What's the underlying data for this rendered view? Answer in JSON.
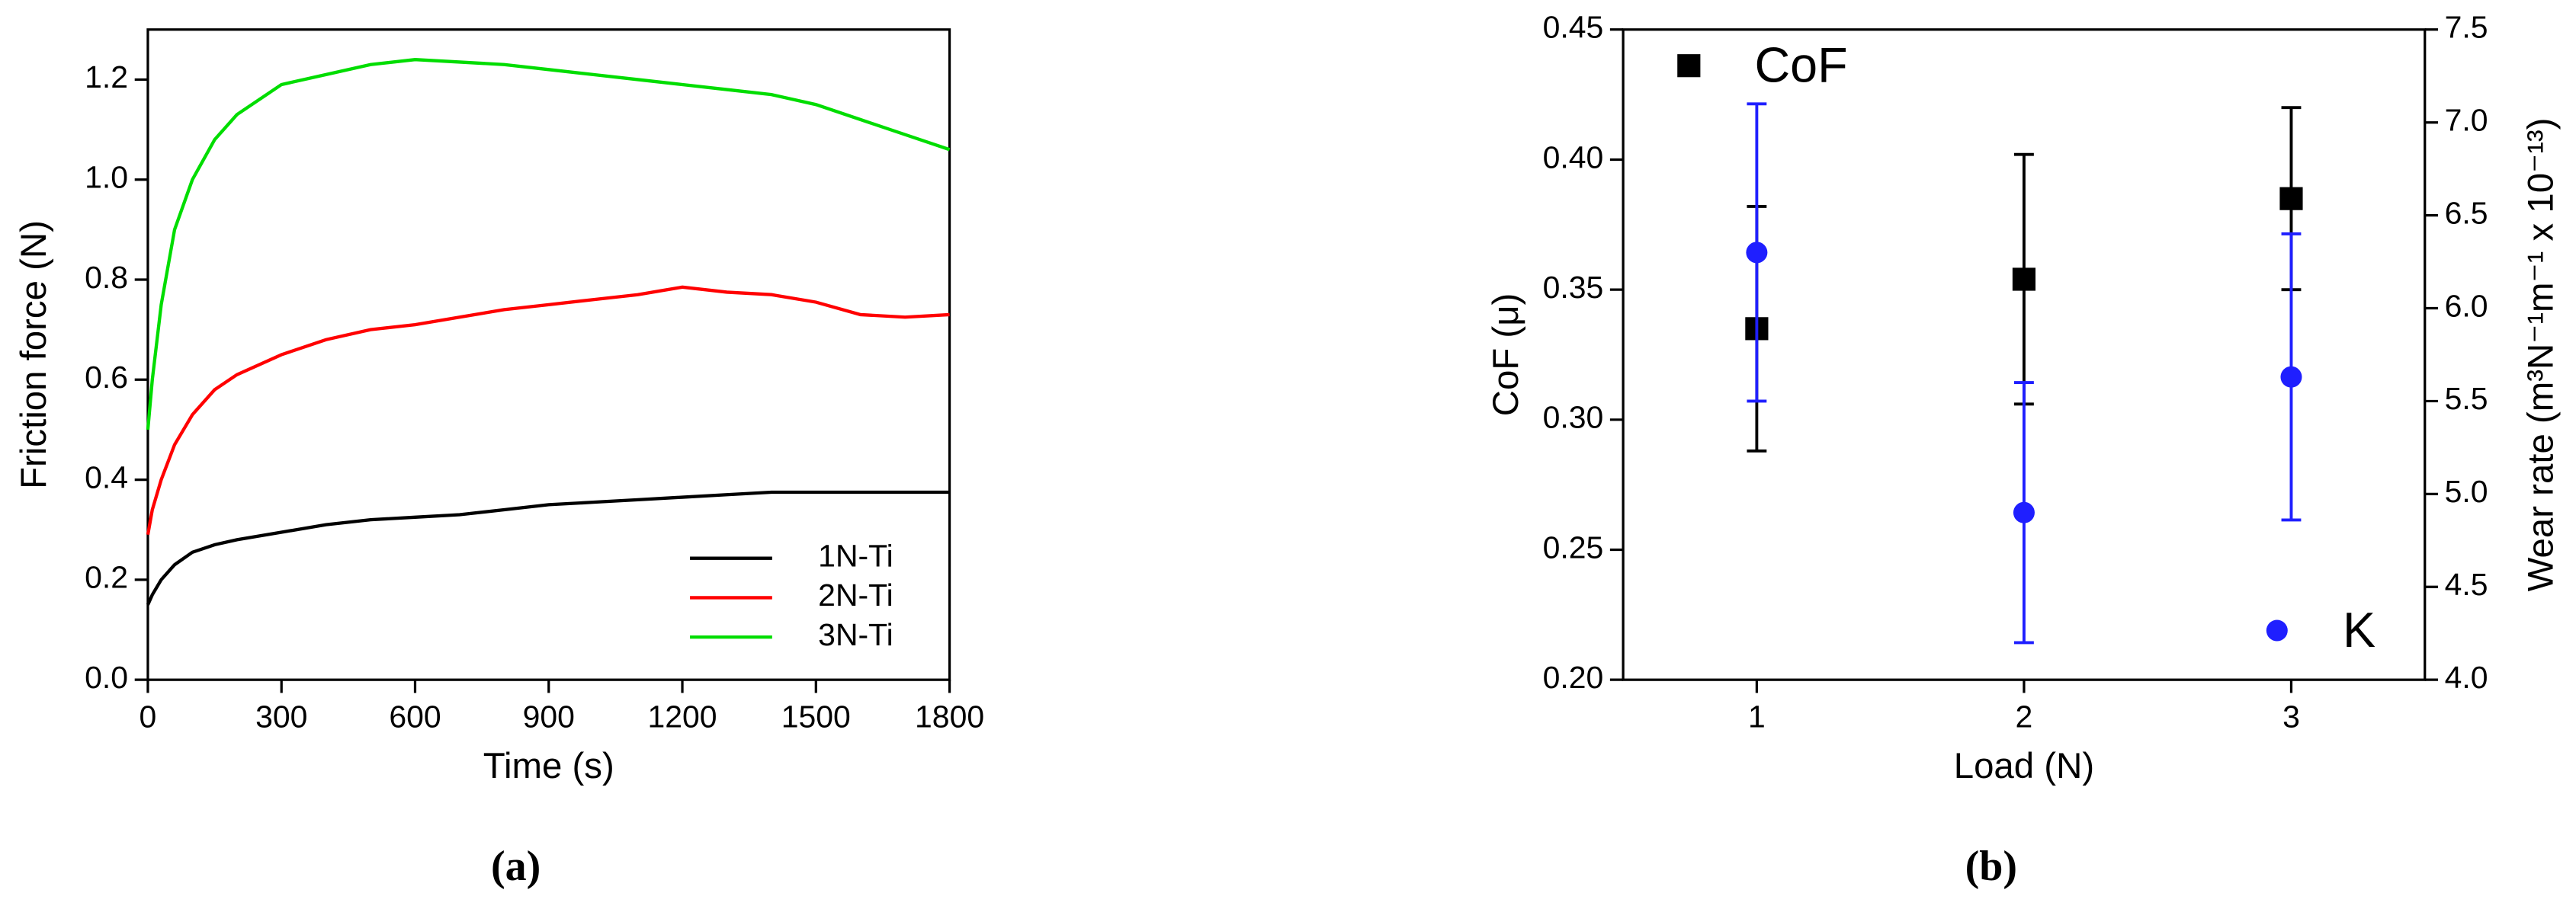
{
  "chart_data": [
    {
      "type": "line",
      "caption": "(a)",
      "xlabel": "Time (s)",
      "ylabel": "Friction force (N)",
      "x": [
        0,
        10,
        30,
        60,
        100,
        150,
        200,
        300,
        400,
        500,
        600,
        700,
        800,
        900,
        1000,
        1100,
        1200,
        1300,
        1400,
        1500,
        1600,
        1700,
        1800
      ],
      "series": [
        {
          "name": "1N-Ti",
          "color": "#000000",
          "values": [
            0.15,
            0.17,
            0.2,
            0.23,
            0.255,
            0.27,
            0.28,
            0.295,
            0.31,
            0.32,
            0.325,
            0.33,
            0.34,
            0.35,
            0.355,
            0.36,
            0.365,
            0.37,
            0.375,
            0.375,
            0.375,
            0.375,
            0.375
          ]
        },
        {
          "name": "2N-Ti",
          "color": "#ff0000",
          "values": [
            0.29,
            0.34,
            0.4,
            0.47,
            0.53,
            0.58,
            0.61,
            0.65,
            0.68,
            0.7,
            0.71,
            0.725,
            0.74,
            0.75,
            0.76,
            0.77,
            0.785,
            0.775,
            0.77,
            0.755,
            0.73,
            0.725,
            0.73
          ]
        },
        {
          "name": "3N-Ti",
          "color": "#00dd00",
          "values": [
            0.5,
            0.6,
            0.75,
            0.9,
            1.0,
            1.08,
            1.13,
            1.19,
            1.21,
            1.23,
            1.24,
            1.235,
            1.23,
            1.22,
            1.21,
            1.2,
            1.19,
            1.18,
            1.17,
            1.15,
            1.12,
            1.09,
            1.06
          ]
        }
      ],
      "xlim": [
        0,
        1800
      ],
      "xticks": [
        0,
        300,
        600,
        900,
        1200,
        1500,
        1800
      ],
      "ylim": [
        0,
        1.3
      ],
      "yticks": [
        {
          "value": 0,
          "label": "0.0"
        },
        0.2,
        0.4,
        0.6,
        0.8,
        {
          "value": 1,
          "label": "1.0"
        },
        1.2
      ],
      "legend": "lower right"
    },
    {
      "type": "scatter",
      "caption": "(b)",
      "xlabel": "Load (N)",
      "ylabel": "CoF (μ)",
      "y2label": "Wear rate (m³N⁻¹m⁻¹ x 10⁻¹³)",
      "x": [
        1,
        2,
        3
      ],
      "series": [
        {
          "name": "CoF",
          "color": "#000000",
          "marker": "square",
          "legend": "upper left",
          "values": [
            0.335,
            0.354,
            0.385
          ],
          "errors": [
            0.047,
            0.048,
            0.035
          ]
        },
        {
          "name": "K",
          "color": "#1f1fff",
          "marker": "circle",
          "axis": "y2",
          "legend": "lower right",
          "values": [
            6.3,
            4.9,
            5.63
          ],
          "errors": [
            0.8,
            0.7,
            0.77
          ]
        }
      ],
      "xlim": [
        0.5,
        3.5
      ],
      "xticks": [
        1,
        2,
        3
      ],
      "ylim": [
        0.2,
        0.45
      ],
      "yticks": [
        {
          "value": 0.2,
          "label": "0.20"
        },
        0.25,
        {
          "value": 0.3,
          "label": "0.30"
        },
        0.35,
        {
          "value": 0.4,
          "label": "0.40"
        },
        0.45
      ],
      "y2lim": [
        4.0,
        7.5
      ],
      "y2ticks": [
        {
          "value": 4,
          "label": "4.0"
        },
        4.5,
        {
          "value": 5,
          "label": "5.0"
        },
        5.5,
        {
          "value": 6,
          "label": "6.0"
        },
        6.5,
        {
          "value": 7,
          "label": "7.0"
        },
        7.5
      ]
    }
  ]
}
